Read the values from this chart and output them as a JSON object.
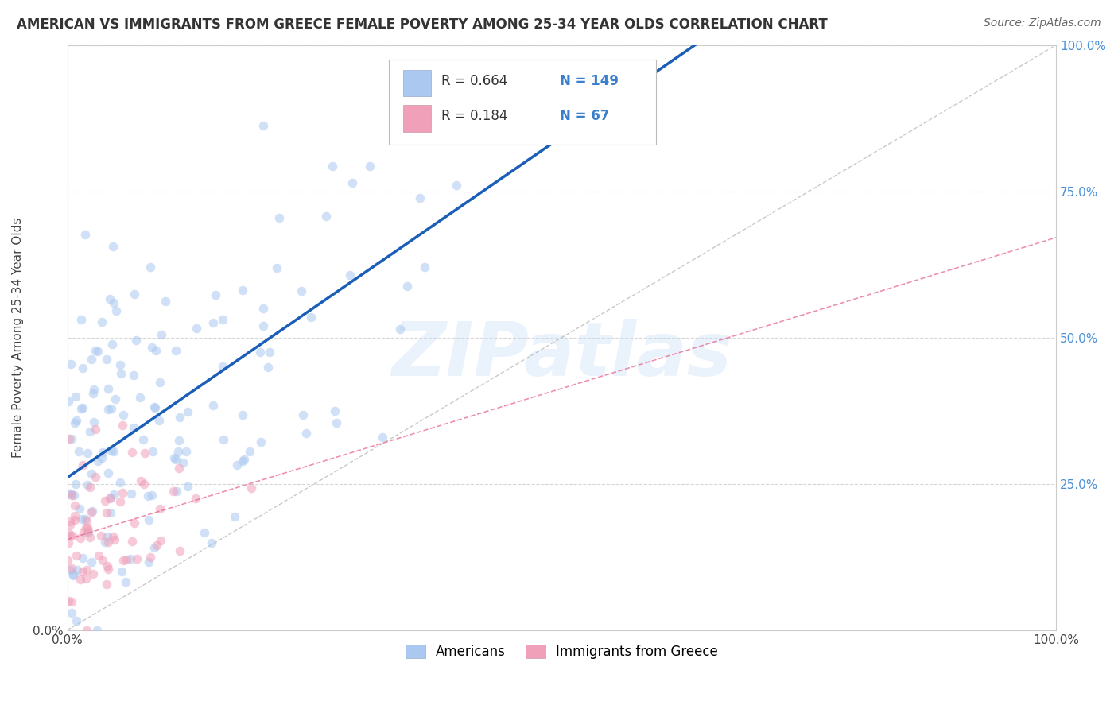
{
  "title": "AMERICAN VS IMMIGRANTS FROM GREECE FEMALE POVERTY AMONG 25-34 YEAR OLDS CORRELATION CHART",
  "source": "Source: ZipAtlas.com",
  "ylabel": "Female Poverty Among 25-34 Year Olds",
  "xlim": [
    0,
    1.0
  ],
  "ylim": [
    0,
    1.0
  ],
  "ytick_positions": [
    0.0,
    0.25,
    0.5,
    0.75,
    1.0
  ],
  "ytick_labels_right": [
    "",
    "25.0%",
    "50.0%",
    "75.0%",
    "100.0%"
  ],
  "grid_color": "#cccccc",
  "background_color": "#ffffff",
  "watermark": "ZIPatlas",
  "legend_R1": "0.664",
  "legend_N1": "149",
  "legend_R2": "0.184",
  "legend_N2": "67",
  "americans_color": "#aac8f0",
  "immigrants_color": "#f0a0b8",
  "regression_line_color": "#1a5eb8",
  "legend_label1": "Americans",
  "legend_label2": "Immigrants from Greece",
  "point_size": 70,
  "point_alpha": 0.55,
  "seed": 42,
  "n_americans": 149,
  "n_immigrants": 67,
  "R1": 0.664,
  "R2": 0.184
}
